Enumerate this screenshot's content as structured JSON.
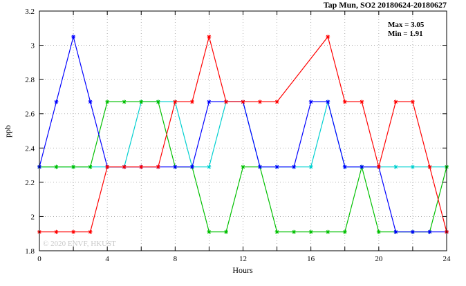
{
  "header": {
    "title": "Tap Mun, SO2 20180624-20180627"
  },
  "annotation": {
    "max_label": "Max = 3.05",
    "min_label": "Min = 1.91"
  },
  "watermark": "© 2020 ENVF, HKUST",
  "axes": {
    "ylabel": "ppb",
    "xlabel": "Hours"
  },
  "chart_data": {
    "type": "line",
    "title": "Tap Mun, SO2 20180624-20180627",
    "xlabel": "Hours",
    "ylabel": "ppb",
    "xlim": [
      0,
      24
    ],
    "ylim": [
      1.8,
      3.2
    ],
    "grid": true,
    "legend": "none",
    "max_value": 3.05,
    "min_value": 1.91,
    "y_ticks": [
      1.8,
      2.0,
      2.2,
      2.4,
      2.6,
      2.8,
      3.0,
      3.2
    ],
    "y_tick_labels": [
      "1.8",
      "2",
      "2.2",
      "2.4",
      "2.6",
      "2.8",
      "3",
      "3.2"
    ],
    "x_grid_ticks": [
      0,
      2,
      4,
      6,
      8,
      10,
      12,
      14,
      16,
      18,
      20,
      22,
      24
    ],
    "x_tick_labels": [
      {
        "v": 0,
        "label": "0"
      },
      {
        "v": 4,
        "label": "4"
      },
      {
        "v": 8,
        "label": "8"
      },
      {
        "v": 12,
        "label": "12"
      },
      {
        "v": 16,
        "label": "16"
      },
      {
        "v": 20,
        "label": "20"
      },
      {
        "v": 24,
        "label": "24"
      }
    ],
    "x": [
      0,
      1,
      2,
      3,
      4,
      5,
      6,
      7,
      8,
      9,
      10,
      11,
      12,
      13,
      14,
      15,
      16,
      17,
      18,
      19,
      20,
      21,
      22,
      23,
      24
    ],
    "series": [
      {
        "name": "series-cyan",
        "color": "#00d0d0",
        "values": [
          2.29,
          2.29,
          2.29,
          2.29,
          2.29,
          2.29,
          2.67,
          2.67,
          2.67,
          2.29,
          2.29,
          2.67,
          2.67,
          2.29,
          2.29,
          2.29,
          2.29,
          2.67,
          2.29,
          2.29,
          2.29,
          2.29,
          2.29,
          2.29,
          2.29
        ]
      },
      {
        "name": "series-green",
        "color": "#00c000",
        "values": [
          2.29,
          2.29,
          2.29,
          2.29,
          2.67,
          2.67,
          2.67,
          2.67,
          2.29,
          2.29,
          1.91,
          1.91,
          2.29,
          2.29,
          1.91,
          1.91,
          1.91,
          1.91,
          1.91,
          2.29,
          1.91,
          1.91,
          1.91,
          1.91,
          2.29
        ]
      },
      {
        "name": "series-blue",
        "color": "#0000ff",
        "values": [
          2.29,
          2.67,
          3.05,
          2.67,
          2.29,
          2.29,
          2.29,
          2.29,
          2.29,
          2.29,
          2.67,
          2.67,
          2.67,
          2.29,
          2.29,
          2.29,
          2.67,
          2.67,
          2.29,
          2.29,
          2.29,
          1.91,
          1.91,
          1.91,
          1.91
        ]
      },
      {
        "name": "series-red",
        "color": "#ff0000",
        "values": [
          1.91,
          1.91,
          1.91,
          1.91,
          2.29,
          2.29,
          2.29,
          2.29,
          2.67,
          2.67,
          3.05,
          2.67,
          2.67,
          2.67,
          2.67,
          null,
          null,
          3.05,
          2.67,
          2.67,
          2.29,
          2.67,
          2.67,
          2.29,
          1.91
        ]
      }
    ]
  }
}
